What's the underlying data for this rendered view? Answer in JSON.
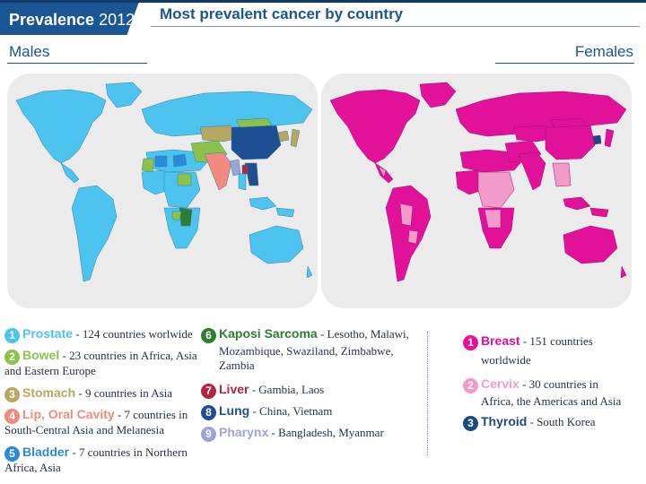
{
  "header": {
    "banner_bold": "Prevalence",
    "banner_year": "2012",
    "subtitle": "Most prevalent cancer by country"
  },
  "maps": {
    "males_label": "Males",
    "females_label": "Females"
  },
  "colors": {
    "navy": "#1b5694",
    "male_ocean_bg": "#ebebeb",
    "male_land": "#4dc3ef",
    "female_land": "#e2119a",
    "female_cervix": "#f29bcb",
    "female_thyroid": "#1b4a7d"
  },
  "legend_males": [
    {
      "num": "1",
      "name": "Prostate",
      "text": " - 124 countries worlwide",
      "cont": "",
      "color": "#4dc3ef"
    },
    {
      "num": "2",
      "name": "Bowel",
      "text": " - 23 countries in Africa, Asia",
      "cont": "and Eastern Europe",
      "color": "#8bc34a"
    },
    {
      "num": "3",
      "name": "Stomach",
      "text": " - 9 countries in Asia",
      "cont": "",
      "color": "#b7a85f"
    },
    {
      "num": "4",
      "name": "Lip, Oral Cavity",
      "text": " - 7 countries in",
      "cont": "South-Central Asia and Melanesia",
      "color": "#f08a7e"
    },
    {
      "num": "5",
      "name": "Bladder",
      "text": " - 7 countries in Northern",
      "cont": "Africa, Asia",
      "color": "#2b8ad8"
    }
  ],
  "legend_males2": [
    {
      "num": "6",
      "name": "Kaposi Sarcoma",
      "text": " - Lesotho, Malawi,",
      "cont": "Mozambique, Swaziland, Zimbabwe,",
      "cont2": "Zambia",
      "color": "#2e7d32"
    },
    {
      "num": "7",
      "name": "Liver",
      "text": " - Gambia, Laos",
      "cont": "",
      "cont2": "",
      "color": "#b3263f"
    },
    {
      "num": "8",
      "name": "Lung",
      "text": " - China, Vietnam",
      "cont": "",
      "cont2": "",
      "color": "#1f4f93"
    },
    {
      "num": "9",
      "name": "Pharynx",
      "text": " - Bangladesh, Myanmar",
      "cont": "",
      "cont2": "",
      "color": "#9fa3d6"
    }
  ],
  "legend_females": [
    {
      "num": "1",
      "name": "Breast",
      "text": " - 151 countries",
      "cont": "worldwide",
      "color": "#e2119a"
    },
    {
      "num": "2",
      "name": "Cervix",
      "text": " - 30 countries in",
      "cont": "Africa, the Americas and Asia",
      "color": "#f29bcb"
    },
    {
      "num": "3",
      "name": "Thyroid",
      "text": " - South Korea",
      "cont": "",
      "color": "#1b4a7d"
    }
  ]
}
